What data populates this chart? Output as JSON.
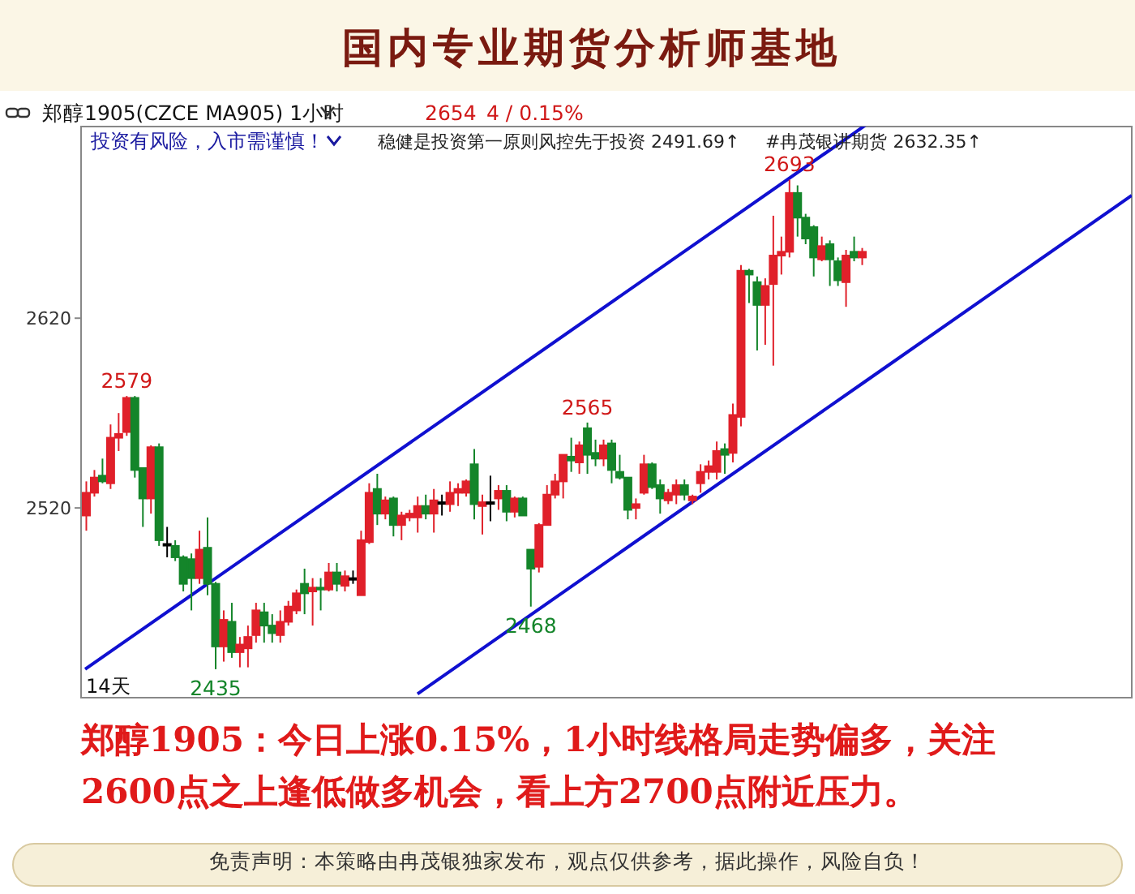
{
  "chart_data": {
    "type": "candlestick",
    "title": "国内专业期货分析师基地",
    "subtitle": "郑醇1905(CZCE MA905)  1小时",
    "categories": [
      null,
      null,
      null,
      null,
      null,
      null,
      null,
      null,
      null,
      null,
      null,
      null,
      null,
      null,
      null,
      null,
      null,
      null,
      null,
      null,
      null,
      null,
      null,
      null,
      null,
      null,
      null,
      null,
      null,
      null,
      null,
      null,
      null,
      null,
      null,
      null,
      null,
      null,
      null,
      null,
      null,
      null,
      null,
      null,
      null,
      null,
      null,
      null,
      null,
      null,
      null,
      null,
      null,
      null,
      null,
      null,
      null,
      null,
      null,
      null,
      null,
      null,
      null,
      null,
      null,
      null,
      null,
      null,
      null,
      null,
      null,
      null,
      null,
      null,
      null,
      null,
      null,
      null,
      null,
      null,
      null,
      null,
      null,
      null,
      null,
      null,
      null,
      null,
      null,
      null,
      null,
      null,
      null,
      null,
      null,
      null,
      null
    ],
    "ohlc": [
      [
        2516,
        2534,
        2508,
        2528
      ],
      [
        2528,
        2540,
        2526,
        2536
      ],
      [
        2537,
        2546,
        2533,
        2534
      ],
      [
        2533,
        2564,
        2530,
        2557
      ],
      [
        2557,
        2570,
        2550,
        2559
      ],
      [
        2560,
        2579,
        2558,
        2578
      ],
      [
        2578,
        2579,
        2536,
        2540
      ],
      [
        2541,
        2541,
        2510,
        2525
      ],
      [
        2525,
        2553,
        2517,
        2552
      ],
      [
        2552,
        2554,
        2500,
        2503
      ],
      [
        2501,
        2510,
        2494,
        2501
      ],
      [
        2500,
        2503,
        2492,
        2494
      ],
      [
        2494,
        2495,
        2476,
        2480
      ],
      [
        2493,
        2496,
        2466,
        2483
      ],
      [
        2483,
        2508,
        2480,
        2498
      ],
      [
        2499,
        2515,
        2474,
        2480
      ],
      [
        2480,
        2481,
        2435,
        2447
      ],
      [
        2447,
        2466,
        2439,
        2461
      ],
      [
        2460,
        2470,
        2441,
        2444
      ],
      [
        2444,
        2452,
        2436,
        2448
      ],
      [
        2446,
        2458,
        2436,
        2452
      ],
      [
        2453,
        2470,
        2449,
        2466
      ],
      [
        2465,
        2470,
        2449,
        2458
      ],
      [
        2458,
        2464,
        2449,
        2454
      ],
      [
        2453,
        2466,
        2449,
        2460
      ],
      [
        2460,
        2471,
        2458,
        2468
      ],
      [
        2466,
        2477,
        2464,
        2475
      ],
      [
        2480,
        2488,
        2464,
        2475
      ],
      [
        2476,
        2483,
        2458,
        2478
      ],
      [
        2478,
        2483,
        2466,
        2477
      ],
      [
        2477,
        2491,
        2476,
        2486
      ],
      [
        2486,
        2491,
        2476,
        2480
      ],
      [
        2479,
        2487,
        2476,
        2484
      ],
      [
        2483,
        2487,
        2480,
        2483
      ],
      [
        2474,
        2508,
        2474,
        2503
      ],
      [
        2502,
        2533,
        2501,
        2528
      ],
      [
        2530,
        2538,
        2511,
        2517
      ],
      [
        2517,
        2526,
        2514,
        2524
      ],
      [
        2525,
        2526,
        2505,
        2511
      ],
      [
        2511,
        2518,
        2503,
        2516
      ],
      [
        2515,
        2519,
        2513,
        2517
      ],
      [
        2515,
        2526,
        2507,
        2521
      ],
      [
        2521,
        2527,
        2514,
        2517
      ],
      [
        2517,
        2530,
        2507,
        2524
      ],
      [
        2523,
        2527,
        2516,
        2523
      ],
      [
        2522,
        2534,
        2518,
        2528
      ],
      [
        2528,
        2533,
        2521,
        2530
      ],
      [
        2528,
        2535,
        2526,
        2534
      ],
      [
        2543,
        2551,
        2514,
        2522
      ],
      [
        2521,
        2527,
        2506,
        2523
      ],
      [
        2523,
        2537,
        2513,
        2523
      ],
      [
        2525,
        2532,
        2519,
        2529
      ],
      [
        2529,
        2532,
        2513,
        2518
      ],
      [
        2518,
        2526,
        2515,
        2525
      ],
      [
        2525,
        2526,
        2516,
        2516
      ],
      [
        2498,
        2498,
        2468,
        2488
      ],
      [
        2489,
        2512,
        2486,
        2511
      ],
      [
        2511,
        2532,
        2511,
        2527
      ],
      [
        2527,
        2538,
        2525,
        2534
      ],
      [
        2534,
        2548,
        2525,
        2548
      ],
      [
        2547,
        2557,
        2539,
        2545
      ],
      [
        2544,
        2555,
        2538,
        2553
      ],
      [
        2562,
        2565,
        2538,
        2548
      ],
      [
        2549,
        2556,
        2542,
        2546
      ],
      [
        2546,
        2556,
        2542,
        2553
      ],
      [
        2554,
        2556,
        2533,
        2540
      ],
      [
        2539,
        2548,
        2535,
        2536
      ],
      [
        2536,
        2536,
        2514,
        2519
      ],
      [
        2520,
        2525,
        2514,
        2522
      ],
      [
        2528,
        2548,
        2527,
        2543
      ],
      [
        2543,
        2544,
        2530,
        2531
      ],
      [
        2532,
        2535,
        2517,
        2525
      ],
      [
        2524,
        2530,
        2522,
        2528
      ],
      [
        2527,
        2535,
        2522,
        2532
      ],
      [
        2532,
        2535,
        2524,
        2527
      ],
      [
        2524,
        2527,
        2522,
        2526
      ],
      [
        2533,
        2543,
        2528,
        2539
      ],
      [
        2539,
        2545,
        2535,
        2542
      ],
      [
        2539,
        2555,
        2535,
        2550
      ],
      [
        2551,
        2554,
        2538,
        2548
      ],
      [
        2549,
        2575,
        2544,
        2569
      ],
      [
        2568,
        2648,
        2563,
        2645
      ],
      [
        2645,
        2646,
        2628,
        2643
      ],
      [
        2639,
        2642,
        2603,
        2627
      ],
      [
        2627,
        2641,
        2606,
        2637
      ],
      [
        2638,
        2674,
        2595,
        2653
      ],
      [
        2653,
        2663,
        2643,
        2655
      ],
      [
        2655,
        2693,
        2652,
        2686
      ],
      [
        2686,
        2690,
        2663,
        2673
      ],
      [
        2673,
        2675,
        2659,
        2662
      ],
      [
        2668,
        2669,
        2642,
        2652
      ],
      [
        2651,
        2663,
        2650,
        2658
      ],
      [
        2659,
        2661,
        2637,
        2651
      ],
      [
        2650,
        2652,
        2637,
        2640
      ],
      [
        2639,
        2656,
        2626,
        2653
      ],
      [
        2655,
        2663,
        2650,
        2652
      ],
      [
        2652,
        2657,
        2648,
        2655
      ]
    ],
    "series": [
      {
        "type": "line",
        "color": "#1010d0",
        "values": [
          2435,
          null,
          null,
          null,
          null,
          null,
          null,
          null,
          null,
          null,
          null,
          null,
          null,
          null,
          null,
          null,
          null,
          null,
          null,
          null,
          null,
          null,
          null,
          null,
          null,
          null,
          null,
          null,
          null,
          null,
          null,
          null,
          null,
          null,
          null,
          null,
          null,
          null,
          null,
          null,
          null,
          null,
          null,
          null,
          null,
          null,
          null,
          null,
          null,
          null,
          null,
          null,
          null,
          null,
          null,
          null,
          null,
          null,
          null,
          null,
          null,
          null,
          null,
          null,
          null,
          null,
          null,
          null,
          null,
          null,
          null,
          null,
          null,
          null,
          null,
          null,
          null,
          null,
          null,
          null,
          null,
          null,
          null,
          null,
          null,
          null,
          null,
          null,
          null,
          null,
          null,
          null,
          null,
          null,
          null,
          2718,
          null
        ]
      },
      {
        "type": "line",
        "color": "#1010d0",
        "values": [
          null,
          null,
          null,
          null,
          null,
          null,
          null,
          null,
          null,
          null,
          null,
          null,
          null,
          null,
          null,
          null,
          null,
          null,
          null,
          null,
          null,
          null,
          null,
          null,
          null,
          null,
          null,
          null,
          null,
          null,
          null,
          null,
          null,
          null,
          null,
          null,
          null,
          null,
          null,
          null,
          null,
          2422,
          null,
          null,
          null,
          null,
          null,
          null,
          null,
          null,
          null,
          null,
          null,
          null,
          null,
          null,
          null,
          null,
          null,
          null,
          null,
          null,
          null,
          null,
          null,
          null,
          null,
          null,
          null,
          null,
          null,
          null,
          null,
          null,
          null,
          null,
          null,
          null,
          null,
          null,
          null,
          null,
          null,
          null,
          null,
          null,
          null,
          null,
          null,
          null,
          null,
          null,
          null,
          null,
          null,
          null,
          2586
        ]
      }
    ],
    "ylim": [
      2420,
      2721
    ],
    "yticks": [
      2520,
      2620
    ],
    "tick_labels": "y",
    "annotations": [
      "2654",
      "4 / 0.15%",
      "投资有风险，入市需谨慎！",
      "稳健是投资第一原则风控先于投资 2491.69↑",
      "#冉茂银讲期货 2632.35↑",
      {
        "text": "2579",
        "y": 2579
      },
      {
        "text": "2435",
        "y": 2435
      },
      {
        "text": "2565",
        "y": 2565
      },
      {
        "text": "2468",
        "y": 2468
      },
      {
        "text": "2693",
        "y": 2693
      },
      "14天",
      "郑醇1905：今日上涨0.15%，1小时线格局走势偏多，关注",
      "2600点之上逢低做多机会，看上方2700点附近压力。",
      "免责声明：本策略由冉茂银独家发布，观点仅供参考，据此操作，风险自负！"
    ]
  }
}
